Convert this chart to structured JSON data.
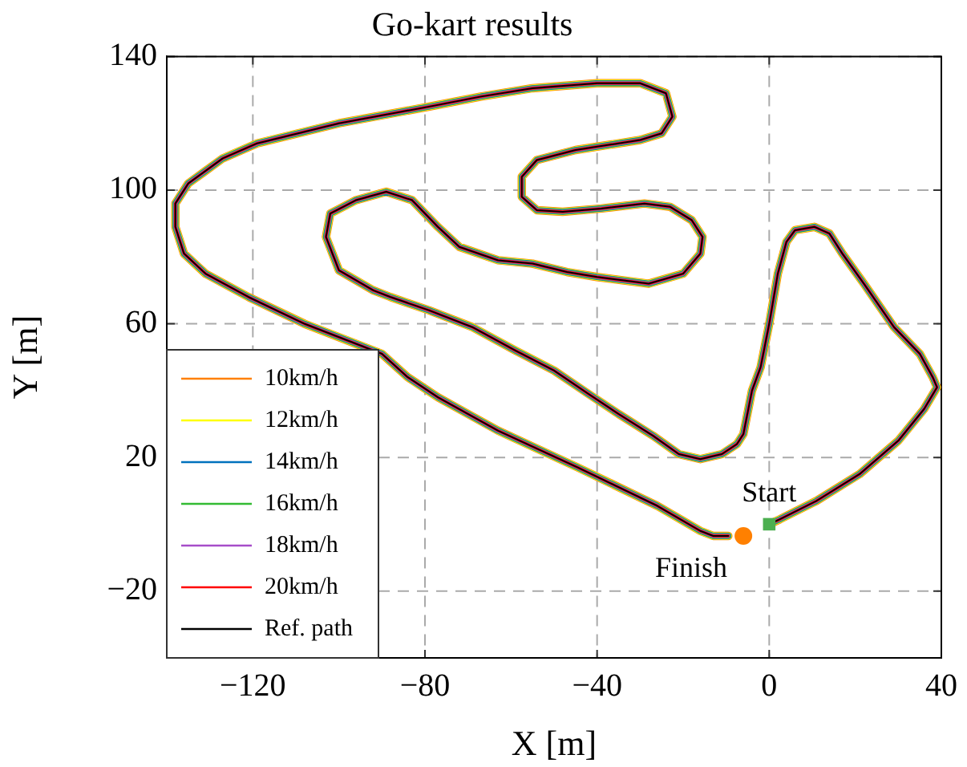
{
  "chart_data": {
    "type": "line",
    "title": "Go-kart results",
    "xlabel": "X [m]",
    "ylabel": "Y [m]",
    "xlim": [
      -140,
      40
    ],
    "xticks": [
      {
        "value": -120,
        "label": "−120"
      },
      {
        "value": -80,
        "label": "−80"
      },
      {
        "value": -40,
        "label": "−40"
      },
      0,
      40
    ],
    "ylim": [
      -40,
      140
    ],
    "yticks": [
      {
        "value": -20,
        "label": "−20"
      },
      20,
      60,
      100,
      140
    ],
    "grid": true,
    "legend": "bottom left",
    "x": [
      0,
      2.5,
      11,
      21,
      30,
      36,
      39,
      38,
      35,
      29,
      22,
      17,
      14,
      10.5,
      6,
      4,
      2,
      0,
      -2,
      -4,
      -6,
      -7.5,
      -11,
      -16,
      -21,
      -27,
      -35,
      -42,
      -50,
      -59,
      -69,
      -79,
      -88,
      -92,
      -100,
      -103,
      -102,
      -96,
      -89,
      -83,
      -77,
      -72,
      -63,
      -55,
      -47,
      -40,
      -28,
      -20,
      -16,
      -15.5,
      -18,
      -23,
      -29,
      -39,
      -48,
      -54,
      -57.5,
      -57.5,
      -54,
      -45,
      -30,
      -25,
      -22.5,
      -24,
      -30,
      -40,
      -55,
      -67,
      -79,
      -100,
      -119,
      -127,
      -135,
      -138,
      -138,
      -136,
      -131,
      -121,
      -108,
      -90,
      -84,
      -77,
      -63,
      -44.5,
      -26,
      -16,
      -13,
      -9.5
    ],
    "series": [
      {
        "name": "10km/h",
        "color": "#ff8000",
        "values": [
          0,
          1.5,
          7,
          15,
          25,
          34.5,
          41,
          44,
          51,
          59,
          72,
          81,
          87,
          89,
          88,
          84.5,
          75,
          60,
          47,
          40,
          27,
          24,
          21,
          19.5,
          21,
          26.5,
          33,
          39,
          46,
          52,
          59,
          64,
          68,
          70,
          76,
          86,
          93,
          97,
          99.5,
          97,
          89,
          83,
          79,
          78,
          75.5,
          74,
          72,
          75,
          81,
          86,
          91,
          95,
          96,
          94.5,
          93.5,
          94,
          98,
          104,
          109,
          112,
          115,
          117,
          122,
          129,
          132,
          132,
          130.5,
          128,
          125,
          120,
          114,
          109.5,
          102,
          96,
          89,
          81,
          75,
          68,
          60,
          51,
          44,
          38,
          28,
          17,
          5.5,
          -2,
          -3.5,
          -3.5
        ]
      },
      {
        "name": "12km/h",
        "color": "#ffff00",
        "values": [
          0,
          1.5,
          7,
          15,
          25,
          34.5,
          41,
          44,
          51,
          59,
          72,
          81,
          87,
          89,
          88,
          84.5,
          75,
          60,
          47,
          40,
          27,
          24,
          21,
          19.5,
          21,
          26.5,
          33,
          39,
          46,
          52,
          59,
          64,
          68,
          70,
          76,
          86,
          93,
          97,
          99.5,
          97,
          89,
          83,
          79,
          78,
          75.5,
          74,
          72,
          75,
          81,
          86,
          91,
          95,
          96,
          94.5,
          93.5,
          94,
          98,
          104,
          109,
          112,
          115,
          117,
          122,
          129,
          132,
          132,
          130.5,
          128,
          125,
          120,
          114,
          109.5,
          102,
          96,
          89,
          81,
          75,
          68,
          60,
          51,
          44,
          38,
          28,
          17,
          5.5,
          -2,
          -3.5,
          -3.5
        ]
      },
      {
        "name": "14km/h",
        "color": "#0072bd",
        "values": [
          0,
          1.5,
          7,
          15,
          25,
          34.5,
          41,
          44,
          51,
          59,
          72,
          81,
          87,
          89,
          88,
          84.5,
          75,
          60,
          47,
          40,
          27,
          24,
          21,
          19.5,
          21,
          26.5,
          33,
          39,
          46,
          52,
          59,
          64,
          68,
          70,
          76,
          86,
          93,
          97,
          99.5,
          97,
          89,
          83,
          79,
          78,
          75.5,
          74,
          72,
          75,
          81,
          86,
          91,
          95,
          96,
          94.5,
          93.5,
          94,
          98,
          104,
          109,
          112,
          115,
          117,
          122,
          129,
          132,
          132,
          130.5,
          128,
          125,
          120,
          114,
          109.5,
          102,
          96,
          89,
          81,
          75,
          68,
          60,
          51,
          44,
          38,
          28,
          17,
          5.5,
          -2,
          -3.5,
          -3.5
        ]
      },
      {
        "name": "16km/h",
        "color": "#33bb33",
        "values": [
          0,
          1.5,
          7,
          15,
          25,
          34.5,
          41,
          44,
          51,
          59,
          72,
          81,
          87,
          89,
          88,
          84.5,
          75,
          60,
          47,
          40,
          27,
          24,
          21,
          19.5,
          21,
          26.5,
          33,
          39,
          46,
          52,
          59,
          64,
          68,
          70,
          76,
          86,
          93,
          97,
          99.5,
          97,
          89,
          83,
          79,
          78,
          75.5,
          74,
          72,
          75,
          81,
          86,
          91,
          95,
          96,
          94.5,
          93.5,
          94,
          98,
          104,
          109,
          112,
          115,
          117,
          122,
          129,
          132,
          132,
          130.5,
          128,
          125,
          120,
          114,
          109.5,
          102,
          96,
          89,
          81,
          75,
          68,
          60,
          51,
          44,
          38,
          28,
          17,
          5.5,
          -2,
          -3.5,
          -3.5
        ]
      },
      {
        "name": "18km/h",
        "color": "#a64dc9",
        "values": [
          0,
          1.5,
          7,
          15,
          25,
          34.5,
          41,
          44,
          51,
          59,
          72,
          81,
          87,
          89,
          88,
          84.5,
          75,
          60,
          47,
          40,
          27,
          24,
          21,
          19.5,
          21,
          26.5,
          33,
          39,
          46,
          52,
          59,
          64,
          68,
          70,
          76,
          86,
          93,
          97,
          99.5,
          97,
          89,
          83,
          79,
          78,
          75.5,
          74,
          72,
          75,
          81,
          86,
          91,
          95,
          96,
          94.5,
          93.5,
          94,
          98,
          104,
          109,
          112,
          115,
          117,
          122,
          129,
          132,
          132,
          130.5,
          128,
          125,
          120,
          114,
          109.5,
          102,
          96,
          89,
          81,
          75,
          68,
          60,
          51,
          44,
          38,
          28,
          17,
          5.5,
          -2,
          -3.5,
          -3.5
        ]
      },
      {
        "name": "20km/h",
        "color": "#ff0000",
        "values": [
          0,
          1.5,
          7,
          15,
          25,
          34.5,
          41,
          44,
          51,
          59,
          72,
          81,
          87,
          89,
          88,
          84.5,
          75,
          60,
          47,
          40,
          27,
          24,
          21,
          19.5,
          21,
          26.5,
          33,
          39,
          46,
          52,
          59,
          64,
          68,
          70,
          76,
          86,
          93,
          97,
          99.5,
          97,
          89,
          83,
          79,
          78,
          75.5,
          74,
          72,
          75,
          81,
          86,
          91,
          95,
          96,
          94.5,
          93.5,
          94,
          98,
          104,
          109,
          112,
          115,
          117,
          122,
          129,
          132,
          132,
          130.5,
          128,
          125,
          120,
          114,
          109.5,
          102,
          96,
          89,
          81,
          75,
          68,
          60,
          51,
          44,
          38,
          28,
          17,
          5.5,
          -2,
          -3.5,
          -3.5
        ]
      },
      {
        "name": "Ref. path",
        "color": "#000000",
        "values": [
          0,
          1.5,
          7,
          15,
          25,
          34.5,
          41,
          44,
          51,
          59,
          72,
          81,
          87,
          89,
          88,
          84.5,
          75,
          60,
          47,
          40,
          27,
          24,
          21,
          19.5,
          21,
          26.5,
          33,
          39,
          46,
          52,
          59,
          64,
          68,
          70,
          76,
          86,
          93,
          97,
          99.5,
          97,
          89,
          83,
          79,
          78,
          75.5,
          74,
          72,
          75,
          81,
          86,
          91,
          95,
          96,
          94.5,
          93.5,
          94,
          98,
          104,
          109,
          112,
          115,
          117,
          122,
          129,
          132,
          132,
          130.5,
          128,
          125,
          120,
          114,
          109.5,
          102,
          96,
          89,
          81,
          75,
          68,
          60,
          51,
          44,
          38,
          28,
          17,
          5.5,
          -2,
          -3.5,
          -3.5
        ]
      },
      {
        "type": "scatter",
        "marker": "square",
        "color": "#4caf50",
        "x": [
          0
        ],
        "values": [
          0
        ]
      },
      {
        "type": "scatter",
        "marker": "circle",
        "color": "#ff8000",
        "x": [
          -6
        ],
        "values": [
          -3.5
        ]
      }
    ],
    "annotations": [
      {
        "text": "Start",
        "x": 0,
        "y": 0
      },
      {
        "text": "Finish",
        "x": -6,
        "y": -3.5
      }
    ]
  }
}
